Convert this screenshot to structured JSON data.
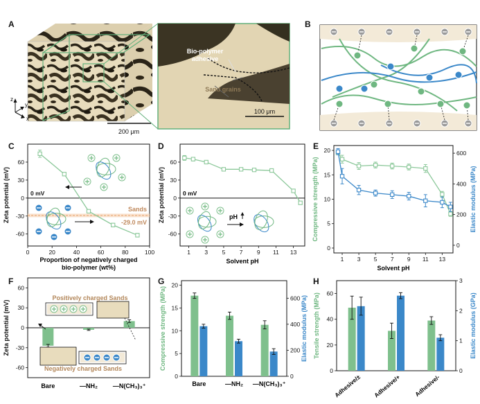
{
  "panels": {
    "A": {
      "label": "A",
      "cube_scale": "200 μm",
      "zoom_scale": "100 μm",
      "annot_polymer_1": "Bio-polymer",
      "annot_polymer_2": "adhesive",
      "annot_sand": "Sand grains",
      "axis_z": "z",
      "axis_y": "y",
      "axis_x": "x"
    },
    "B": {
      "label": "B"
    },
    "C": {
      "label": "C"
    },
    "D": {
      "label": "D"
    },
    "E": {
      "label": "E"
    },
    "F": {
      "label": "F",
      "pos_box": "Positively charged Sands",
      "neg_box": "Negatively charged Sands"
    },
    "G": {
      "label": "G"
    },
    "H": {
      "label": "H"
    }
  },
  "chart_data": [
    {
      "id": "C",
      "type": "line",
      "xlabel": "Proportion of negatively charged bio-polymer (wt%)",
      "ylabel": "Zeta potential (mV)",
      "xlim": [
        0,
        100
      ],
      "ylim": [
        -80,
        90
      ],
      "xticks": [
        0,
        20,
        40,
        60,
        80,
        100
      ],
      "yticks": [
        -60,
        -30,
        0,
        30,
        60
      ],
      "x": [
        10,
        30,
        50,
        70,
        90
      ],
      "values": [
        74,
        40,
        -22,
        -45,
        -62
      ],
      "errors": [
        6,
        2,
        2,
        3,
        3
      ],
      "zero_label": "0 mV",
      "ref_line": {
        "value": -29.0,
        "name": "Sands",
        "label": "-29.0 mV"
      }
    },
    {
      "id": "D",
      "type": "line",
      "xlabel": "Solvent pH",
      "ylabel": "Zeta potential (mV)",
      "xlim": [
        0,
        14.3
      ],
      "ylim": [
        -80,
        90
      ],
      "xticks": [
        1,
        3,
        5,
        7,
        9,
        11,
        13
      ],
      "yticks": [
        -60,
        -30,
        0,
        30,
        60
      ],
      "x": [
        0.5,
        1.5,
        3,
        5,
        7,
        8.5,
        10.5,
        13,
        13.8
      ],
      "values": [
        67,
        65,
        60,
        48,
        48,
        47,
        46,
        12,
        -8
      ],
      "errors": [
        4,
        3,
        2,
        1,
        2,
        2,
        2,
        1,
        1
      ],
      "zero_label": "0 mV",
      "annot": "pH"
    },
    {
      "id": "E",
      "type": "line",
      "xlabel": "Solvent pH",
      "ylabel": "Compressive strength (MPa)",
      "y2label": "Elastic modulus (MPa)",
      "xlim": [
        0,
        14.3
      ],
      "ylim": [
        -1,
        21
      ],
      "y2lim": [
        -50,
        650
      ],
      "xticks": [
        1,
        3,
        5,
        7,
        9,
        11,
        13
      ],
      "yticks": [
        0,
        5,
        10,
        15,
        20
      ],
      "y2ticks": [
        0,
        200,
        400,
        600
      ],
      "series": [
        {
          "x": [
            0.5,
            1,
            3,
            5,
            7,
            9,
            11,
            13,
            14
          ],
          "values": [
            19.5,
            18.2,
            16.8,
            17.0,
            16.8,
            16.6,
            16.3,
            11.0,
            7.0
          ],
          "errors": [
            0.4,
            0.8,
            0.7,
            0.6,
            0.6,
            0.6,
            0.8,
            0.6,
            0.5
          ],
          "axis": "left"
        },
        {
          "x": [
            0.5,
            1,
            3,
            5,
            7,
            9,
            11,
            13,
            14
          ],
          "values": [
            610,
            450,
            360,
            340,
            330,
            320,
            290,
            280,
            250
          ],
          "errors": [
            20,
            50,
            30,
            20,
            25,
            25,
            40,
            35,
            30
          ],
          "axis": "right"
        }
      ]
    },
    {
      "id": "F",
      "type": "bar",
      "ylabel": "Zeta potential (mV)",
      "categories": [
        "Bare",
        "—NH₂",
        "—N(CH₃)₃⁺"
      ],
      "values": [
        -27,
        -3,
        10
      ],
      "errors": [
        2,
        1,
        2
      ],
      "ylim": [
        -75,
        75
      ],
      "yticks": [
        -60,
        -30,
        0,
        30,
        60
      ]
    },
    {
      "id": "G",
      "type": "bar",
      "ylabel": "Compressive strength (MPa)",
      "y2label": "Elastic modulus (MPa)",
      "categories": [
        "Bare",
        "—NH₂",
        "—N(CH₃)₃⁺"
      ],
      "ylim": [
        0,
        21
      ],
      "y2lim": [
        0,
        735
      ],
      "yticks": [
        0,
        5,
        10,
        15,
        20
      ],
      "y2ticks": [
        0,
        200,
        400,
        600
      ],
      "series": [
        {
          "values": [
            17.7,
            13.3,
            11.3
          ],
          "errors": [
            0.6,
            0.8,
            0.9
          ],
          "axis": "left"
        },
        {
          "values": [
            385,
            270,
            190
          ],
          "errors": [
            15,
            15,
            22
          ],
          "axis": "right"
        }
      ]
    },
    {
      "id": "H",
      "type": "bar",
      "ylabel": "Tensile strength (MPa)",
      "y2label": "Elastic modulus (GPa)",
      "categories": [
        "Adhesive/±",
        "Adhesive/+",
        "Adhesive/-"
      ],
      "ylim": [
        0,
        70
      ],
      "y2lim": [
        0,
        3
      ],
      "yticks": [
        0,
        20,
        40,
        60
      ],
      "y2ticks": [
        0,
        1,
        2,
        3
      ],
      "series": [
        {
          "values": [
            49,
            31,
            39
          ],
          "errors": [
            9,
            6,
            3
          ],
          "axis": "left"
        },
        {
          "values": [
            2.15,
            2.5,
            1.1
          ],
          "errors": [
            0.3,
            0.1,
            0.1
          ],
          "axis": "right"
        }
      ]
    }
  ],
  "colors": {
    "green": "#7fc08d",
    "green_line": "#8cc89a",
    "blue": "#3b88c9",
    "sand": "#f3ead8",
    "ref": "#e7a36c"
  }
}
